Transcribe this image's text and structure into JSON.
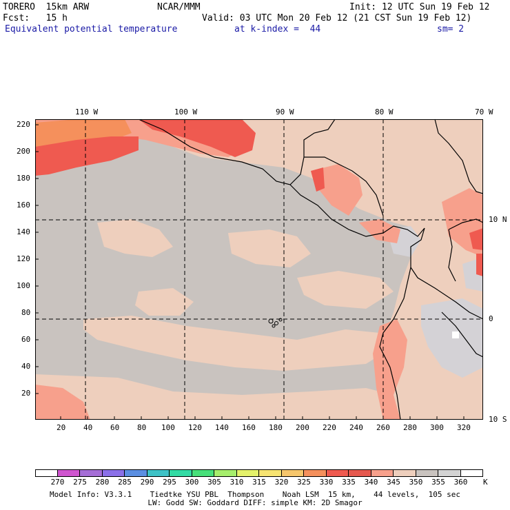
{
  "header": {
    "left1": "TORERO  15km ARW",
    "left2": "Fcst:   15 h",
    "center": "NCAR/MMM",
    "init": "Init: 12 UTC Sun 19 Feb 12",
    "valid": "Valid: 03 UTC Mon 20 Feb 12 (21 CST Sun 19 Feb 12)",
    "field": "Equivalent potential temperature",
    "level": "at k-index =  44",
    "smooth": "sm= 2"
  },
  "map": {
    "top_lon_labels": [
      "110 W",
      "100 W",
      "90 W",
      "80 W",
      "70 W"
    ],
    "right_lat_labels": [
      "10 N",
      "0",
      "10 S"
    ],
    "y_ticks": [
      "220",
      "200",
      "180",
      "160",
      "140",
      "120",
      "100",
      "80",
      "60",
      "40",
      "20"
    ],
    "x_ticks": [
      "20",
      "40",
      "60",
      "80",
      "100",
      "120",
      "140",
      "160",
      "180",
      "200",
      "220",
      "240",
      "260",
      "280",
      "300",
      "320"
    ],
    "colors": {
      "dominant_gray": "#c9c3bf",
      "warm_beige": "#eecfbd",
      "salmon": "#f7a08c",
      "red": "#ef5a50",
      "orange": "#f5905c",
      "light_gray": "#cfcfd3"
    }
  },
  "colorbar": {
    "labels": [
      "270",
      "275",
      "280",
      "285",
      "290",
      "295",
      "300",
      "305",
      "310",
      "315",
      "320",
      "325",
      "330",
      "335",
      "340",
      "345",
      "350",
      "355",
      "360"
    ],
    "unit": "K",
    "colors": [
      "#cf55cf",
      "#a56ed6",
      "#8b70e8",
      "#5b8fe2",
      "#3ec2c6",
      "#33dba4",
      "#47e07a",
      "#a6ee6c",
      "#e4f26b",
      "#f7e472",
      "#f6c66c",
      "#f5905c",
      "#ef5a50",
      "#e6594f",
      "#f7a08c",
      "#eecfbd",
      "#c9c3bf",
      "#d3d3d3",
      "#ffffff"
    ]
  },
  "footer": {
    "line1": "Model Info: V3.3.1    Tiedtke YSU PBL  Thompson    Noah LSM  15 km,    44 levels,  105 sec",
    "line2": "LW: Godd SW: Goddard DIFF: simple KM: 2D Smagor"
  }
}
